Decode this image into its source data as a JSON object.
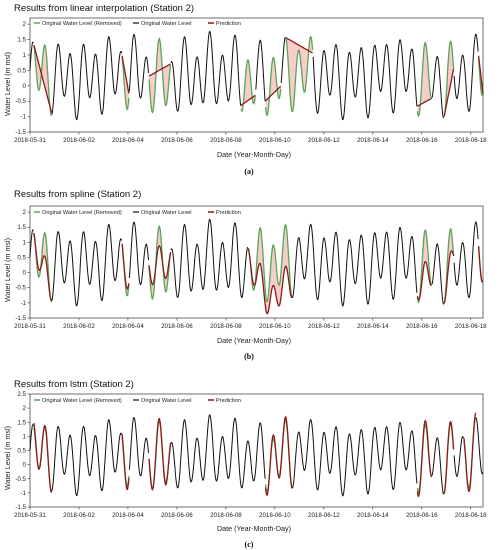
{
  "colors": {
    "original": "#111111",
    "removed": "#5aa55a",
    "prediction": "#8b1a1a",
    "shade": "#f2b8b0"
  },
  "chart_data": [
    {
      "type": "line",
      "title": "Results from linear interpolation (Station 2)",
      "caption": "(a)",
      "xlabel": "Date (Year-Month-Day)",
      "ylabel": "Water Level (m msl)",
      "xlim": [
        0,
        18.5
      ],
      "ylim": [
        -1.5,
        2.2
      ],
      "x_ticks": [
        "2018-05-31",
        "2018-06-02",
        "2018-06-04",
        "2018-06-06",
        "2018-06-08",
        "2018-06-10",
        "2018-06-12",
        "2018-06-14",
        "2018-06-16",
        "2018-06-18"
      ],
      "y_ticks": [
        "-1.5",
        "-1",
        "-0.5",
        "0",
        "0.5",
        "1",
        "1.5",
        "2"
      ],
      "legend": [
        "Original Water Level (Removed)",
        "Original Water Level",
        "Prediction"
      ],
      "legend_position": "top-left",
      "gaps": [
        {
          "start": 0.15,
          "end": 0.9,
          "mode": "linear"
        },
        {
          "start": 3.75,
          "end": 4.05,
          "mode": "linear"
        },
        {
          "start": 4.85,
          "end": 5.75,
          "mode": "linear"
        },
        {
          "start": 8.6,
          "end": 9.2,
          "mode": "linear"
        },
        {
          "start": 9.6,
          "end": 10.25,
          "mode": "linear"
        },
        {
          "start": 10.45,
          "end": 11.55,
          "mode": "linear"
        },
        {
          "start": 15.8,
          "end": 16.4,
          "mode": "linear"
        },
        {
          "start": 16.9,
          "end": 17.3,
          "mode": "linear"
        },
        {
          "start": 18.3,
          "end": 18.5,
          "mode": "linear"
        }
      ]
    },
    {
      "type": "line",
      "title": "Results from spline (Station 2)",
      "caption": "(b)",
      "xlabel": "Date (Year-Month-Day)",
      "ylabel": "Water Level (m msl)",
      "xlim": [
        0,
        18.5
      ],
      "ylim": [
        -1.5,
        2.2
      ],
      "x_ticks": [
        "2018-05-31",
        "2018-06-02",
        "2018-06-04",
        "2018-06-06",
        "2018-06-08",
        "2018-06-10",
        "2018-06-12",
        "2018-06-14",
        "2018-06-16",
        "2018-06-18"
      ],
      "y_ticks": [
        "-1.5",
        "-1",
        "-0.5",
        "0",
        "0.5",
        "1",
        "1.5",
        "2"
      ],
      "legend": [
        "Original Water Level (Removed)",
        "Original Water Level",
        "Prediction"
      ],
      "legend_position": "top-left",
      "gaps": [
        {
          "start": 0.15,
          "end": 0.9,
          "mode": "spline"
        },
        {
          "start": 3.75,
          "end": 4.05,
          "mode": "spline"
        },
        {
          "start": 4.85,
          "end": 5.75,
          "mode": "spline"
        },
        {
          "start": 8.9,
          "end": 10.7,
          "mode": "spline"
        },
        {
          "start": 15.8,
          "end": 16.4,
          "mode": "spline"
        },
        {
          "start": 16.9,
          "end": 17.3,
          "mode": "spline"
        },
        {
          "start": 18.3,
          "end": 18.5,
          "mode": "spline"
        }
      ]
    },
    {
      "type": "line",
      "title": "Results from lstm (Station 2)",
      "caption": "(c)",
      "xlabel": "Date (Year-Month-Day)",
      "ylabel": "Water Level (m msl)",
      "xlim": [
        0,
        18.5
      ],
      "ylim": [
        -1.5,
        2.5
      ],
      "x_ticks": [
        "2018-05-31",
        "2018-06-02",
        "2018-06-04",
        "2018-06-06",
        "2018-06-08",
        "2018-06-10",
        "2018-06-12",
        "2018-06-14",
        "2018-06-16",
        "2018-06-18"
      ],
      "y_ticks": [
        "-1.5",
        "-1",
        "-0.5",
        "0",
        "0.5",
        "1",
        "1.5",
        "2",
        "2.5"
      ],
      "legend": [
        "Original Water Level (Removed)",
        "Original Water Level",
        "Prediction"
      ],
      "legend_position": "top-left",
      "gaps": [
        {
          "start": 0.15,
          "end": 0.9,
          "mode": "lstm"
        },
        {
          "start": 3.75,
          "end": 4.05,
          "mode": "lstm"
        },
        {
          "start": 4.85,
          "end": 5.75,
          "mode": "lstm"
        },
        {
          "start": 9.6,
          "end": 10.7,
          "mode": "lstm"
        },
        {
          "start": 15.8,
          "end": 16.4,
          "mode": "lstm"
        },
        {
          "start": 16.9,
          "end": 17.3,
          "mode": "lstm"
        },
        {
          "start": 17.7,
          "end": 18.2,
          "mode": "lstm"
        }
      ]
    }
  ]
}
